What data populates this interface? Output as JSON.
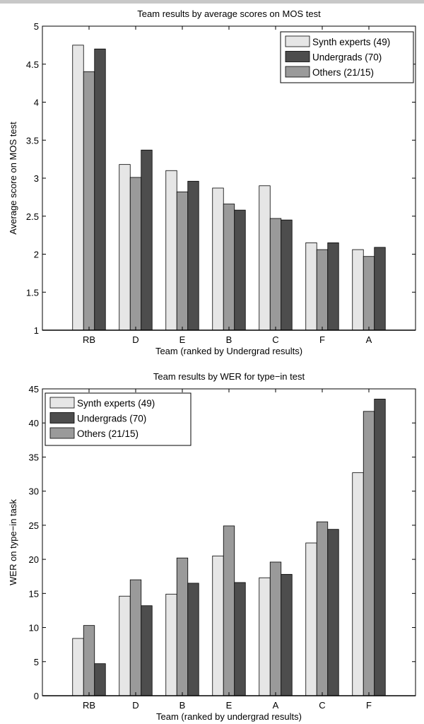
{
  "chart_data": [
    {
      "type": "bar",
      "title": "Team results by average scores on MOS test",
      "xlabel": "Team (ranked by Undergrad results)",
      "ylabel": "Average score on MOS test",
      "ylim": [
        1,
        5
      ],
      "yticks": [
        1,
        1.5,
        2,
        2.5,
        3,
        3.5,
        4,
        4.5,
        5
      ],
      "categories": [
        "RB",
        "D",
        "E",
        "B",
        "C",
        "F",
        "A"
      ],
      "legend_position": "top-right",
      "legend": [
        {
          "label": "Synth experts (49)",
          "color": "#e6e6e6"
        },
        {
          "label": "Undergrads (70)",
          "color": "#4d4d4d"
        },
        {
          "label": "Others (21/15)",
          "color": "#9a9a9a"
        }
      ],
      "series": [
        {
          "name": "Synth experts (49)",
          "color": "#e6e6e6",
          "values": [
            4.75,
            3.18,
            3.1,
            2.87,
            2.9,
            2.15,
            2.06
          ]
        },
        {
          "name": "Others (21/15)",
          "color": "#9a9a9a",
          "values": [
            4.4,
            3.01,
            2.82,
            2.66,
            2.47,
            2.06,
            1.97
          ]
        },
        {
          "name": "Undergrads (70)",
          "color": "#4d4d4d",
          "values": [
            4.7,
            3.37,
            2.96,
            2.58,
            2.45,
            2.15,
            2.09
          ]
        }
      ],
      "grid": false
    },
    {
      "type": "bar",
      "title": "Team results by WER for type−in test",
      "xlabel": "Team (ranked by undergrad results)",
      "ylabel": "WER on type−in task",
      "ylim": [
        0,
        45
      ],
      "yticks": [
        0,
        5,
        10,
        15,
        20,
        25,
        30,
        35,
        40,
        45
      ],
      "categories": [
        "RB",
        "D",
        "B",
        "E",
        "A",
        "C",
        "F"
      ],
      "legend_position": "top-left",
      "legend": [
        {
          "label": "Synth experts (49)",
          "color": "#e6e6e6"
        },
        {
          "label": "Undergrads (70)",
          "color": "#4d4d4d"
        },
        {
          "label": "Others (21/15)",
          "color": "#9a9a9a"
        }
      ],
      "series": [
        {
          "name": "Synth experts (49)",
          "color": "#e6e6e6",
          "values": [
            8.4,
            14.6,
            14.9,
            20.5,
            17.3,
            22.4,
            32.7
          ]
        },
        {
          "name": "Others (21/15)",
          "color": "#9a9a9a",
          "values": [
            10.3,
            17.0,
            20.2,
            24.9,
            19.6,
            25.5,
            41.7
          ]
        },
        {
          "name": "Undergrads (70)",
          "color": "#4d4d4d",
          "values": [
            4.7,
            13.2,
            16.5,
            16.6,
            17.8,
            24.4,
            43.5
          ]
        }
      ],
      "grid": false
    }
  ]
}
